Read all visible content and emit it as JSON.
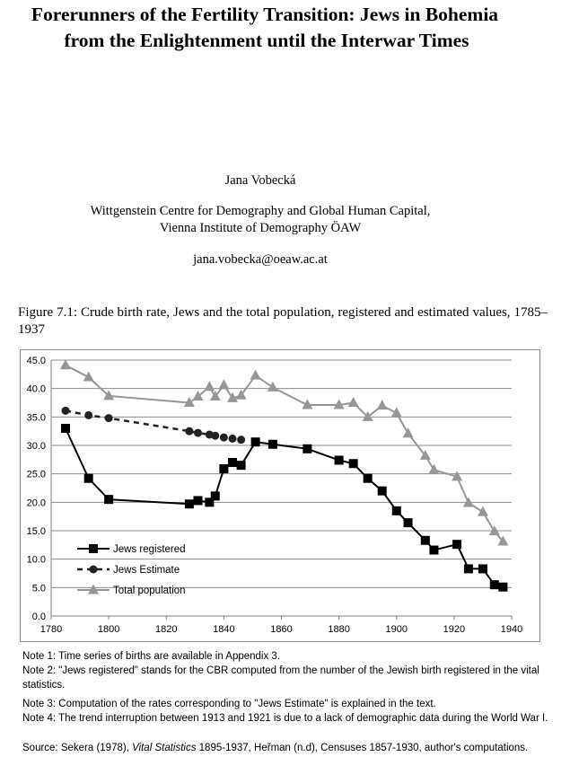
{
  "header": {
    "title_line1": "Forerunners of the Fertility Transition: Jews in Bohemia",
    "title_line2": "from the Enlightenment until the Interwar Times",
    "author": "Jana Vobecká",
    "affiliation_line1": "Wittgenstein Centre for Demography and Global Human Capital,",
    "affiliation_line2": "Vienna Institute of Demography ÖAW",
    "email": "jana.vobecka@oeaw.ac.at"
  },
  "figure": {
    "caption": "Figure 7.1: Crude birth rate, Jews and the total population, registered and estimated values, 1785–1937"
  },
  "chart_data": {
    "type": "line",
    "x_ticks": [
      1780,
      1800,
      1820,
      1840,
      1860,
      1880,
      1900,
      1920,
      1940
    ],
    "y_ticks": [
      "0.0",
      "5.0",
      "10.0",
      "15.0",
      "20.0",
      "25.0",
      "30.0",
      "35.0",
      "40.0",
      "45.0"
    ],
    "xlim": [
      1780,
      1940
    ],
    "ylim": [
      0,
      45
    ],
    "grid": "horizontal",
    "legend_position": "bottom-left",
    "series": [
      {
        "name": "Jews registered",
        "style": "solid",
        "marker": "square",
        "color": "#000000",
        "points": [
          [
            1785,
            33.0
          ],
          [
            1793,
            24.2
          ],
          [
            1800,
            20.5
          ],
          [
            1828,
            19.7
          ],
          [
            1831,
            20.3
          ],
          [
            1835,
            20.0
          ],
          [
            1837,
            21.1
          ],
          [
            1840,
            25.9
          ],
          [
            1843,
            27.0
          ],
          [
            1846,
            26.5
          ],
          [
            1851,
            30.6
          ],
          [
            1857,
            30.2
          ],
          [
            1869,
            29.4
          ],
          [
            1880,
            27.4
          ],
          [
            1885,
            26.8
          ],
          [
            1890,
            24.2
          ],
          [
            1895,
            22.0
          ],
          [
            1900,
            18.5
          ],
          [
            1904,
            16.4
          ],
          [
            1910,
            13.3
          ],
          [
            1913,
            11.6
          ],
          [
            1921,
            12.6
          ],
          [
            1925,
            8.3
          ],
          [
            1930,
            8.3
          ],
          [
            1934,
            5.5
          ],
          [
            1937,
            5.1
          ]
        ]
      },
      {
        "name": "Jews Estimate",
        "style": "dashed",
        "marker": "circle",
        "color": "#222222",
        "points": [
          [
            1785,
            36.1
          ],
          [
            1793,
            35.3
          ],
          [
            1800,
            34.8
          ],
          [
            1828,
            32.5
          ],
          [
            1831,
            32.2
          ],
          [
            1835,
            31.9
          ],
          [
            1837,
            31.7
          ],
          [
            1840,
            31.4
          ],
          [
            1843,
            31.2
          ],
          [
            1846,
            31.0
          ]
        ]
      },
      {
        "name": "Total population",
        "style": "solid",
        "marker": "triangle",
        "color": "#969696",
        "points": [
          [
            1785,
            44.1
          ],
          [
            1793,
            42.0
          ],
          [
            1800,
            38.7
          ],
          [
            1828,
            37.5
          ],
          [
            1831,
            38.6
          ],
          [
            1835,
            40.3
          ],
          [
            1837,
            38.6
          ],
          [
            1840,
            40.6
          ],
          [
            1843,
            38.3
          ],
          [
            1846,
            38.8
          ],
          [
            1851,
            42.3
          ],
          [
            1857,
            40.2
          ],
          [
            1869,
            37.1
          ],
          [
            1880,
            37.1
          ],
          [
            1885,
            37.5
          ],
          [
            1890,
            35.0
          ],
          [
            1895,
            37.0
          ],
          [
            1900,
            35.7
          ],
          [
            1904,
            32.1
          ],
          [
            1910,
            28.2
          ],
          [
            1913,
            25.7
          ],
          [
            1921,
            24.5
          ],
          [
            1925,
            19.9
          ],
          [
            1930,
            18.3
          ],
          [
            1934,
            14.9
          ],
          [
            1937,
            13.1
          ]
        ]
      }
    ]
  },
  "notes": {
    "note1": "Note 1: Time series of births are available in Appendix 3.",
    "note2": "Note 2: \"Jews registered\" stands for the CBR computed from the number of the Jewish birth registered in the vital statistics.",
    "note3": "Note 3: Computation of the rates corresponding to \"Jews Estimate\" is explained in the text.",
    "note4": "Note 4: The trend interruption between 1913 and 1921 is due to a lack of demographic data during the World War I.",
    "source_prefix": "Source: Sekera (1978), ",
    "source_italic": "Vital Statistics",
    "source_suffix": " 1895-1937, Heřman (n.d), Censuses 1857-1930, author's computations."
  }
}
